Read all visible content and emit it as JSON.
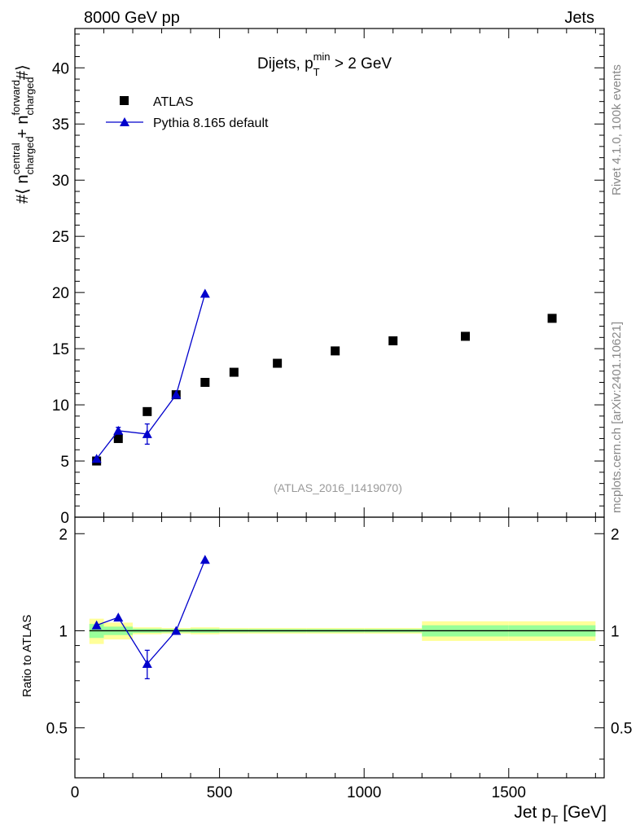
{
  "header": {
    "left": "8000 GeV pp",
    "right": "Jets"
  },
  "side_labels": {
    "rivet": "Rivet 4.1.0,  100k events",
    "mcplots": "mcplots.cern.ch [arXiv:2401.10621]"
  },
  "colors": {
    "mc": "#0000cc",
    "data": "#000000",
    "band_inner": "#99ff99",
    "band_outer": "#ffff99",
    "watermark": "#999999"
  },
  "chart_data": [
    {
      "type": "scatter",
      "panel": "main",
      "title": "Dijets, p_T^min > 2 GeV",
      "title_parts": {
        "prefix": "Dijets, p",
        "sub": "T",
        "sup": "min",
        "suffix": " > 2 GeV"
      },
      "watermark": "(ATLAS_2016_I1419070)",
      "ylabel_parts": {
        "open": "#⟨ n",
        "sup1": "central",
        "sub1": "charged",
        "plus": " + n",
        "sup2": "forward",
        "sub2": "charged",
        "close": "#⟩"
      },
      "xlim": [
        0,
        1830
      ],
      "ylim": [
        0,
        43.5
      ],
      "y_ticks": [
        0,
        5,
        10,
        15,
        20,
        25,
        30,
        35,
        40
      ],
      "legend": {
        "position": "top-left",
        "entries": [
          "ATLAS",
          "Pythia 8.165 default"
        ]
      },
      "series": [
        {
          "name": "ATLAS",
          "marker": "square",
          "x": [
            75,
            150,
            250,
            350,
            450,
            550,
            700,
            900,
            1100,
            1350,
            1650
          ],
          "y": [
            5.0,
            7.0,
            9.4,
            10.9,
            12.0,
            12.9,
            13.7,
            14.8,
            15.7,
            16.1,
            17.7
          ]
        },
        {
          "name": "Pythia 8.165 default",
          "marker": "triangle",
          "x": [
            75,
            150,
            250,
            350,
            450
          ],
          "y": [
            5.2,
            7.7,
            7.4,
            10.9,
            19.9
          ],
          "yerr": [
            0.1,
            0.3,
            0.9,
            0.2,
            0.1
          ]
        }
      ]
    },
    {
      "type": "line",
      "panel": "ratio",
      "ylabel": "Ratio to ATLAS",
      "xlabel_parts": {
        "prefix": "Jet p",
        "sub": "T",
        "suffix": " [GeV]"
      },
      "xlim": [
        0,
        1830
      ],
      "ylim": [
        0.35,
        2.25
      ],
      "y_ticks": [
        0.5,
        1,
        2
      ],
      "x_ticks": [
        0,
        500,
        1000,
        1500
      ],
      "bands": {
        "x_edges": [
          50,
          100,
          200,
          300,
          400,
          500,
          600,
          800,
          1000,
          1200,
          1500,
          1800
        ],
        "inner": [
          0.05,
          0.03,
          0.015,
          0.012,
          0.015,
          0.012,
          0.012,
          0.012,
          0.012,
          0.04,
          0.04
        ],
        "outer": [
          0.09,
          0.06,
          0.025,
          0.02,
          0.025,
          0.02,
          0.02,
          0.02,
          0.02,
          0.07,
          0.07
        ]
      },
      "series": [
        {
          "name": "Pythia 8.165 default",
          "x": [
            75,
            150,
            250,
            350,
            450
          ],
          "y": [
            1.04,
            1.1,
            0.79,
            1.0,
            1.66
          ],
          "yerr": [
            0.01,
            0.02,
            0.08,
            0.01,
            0.01
          ]
        }
      ]
    }
  ]
}
